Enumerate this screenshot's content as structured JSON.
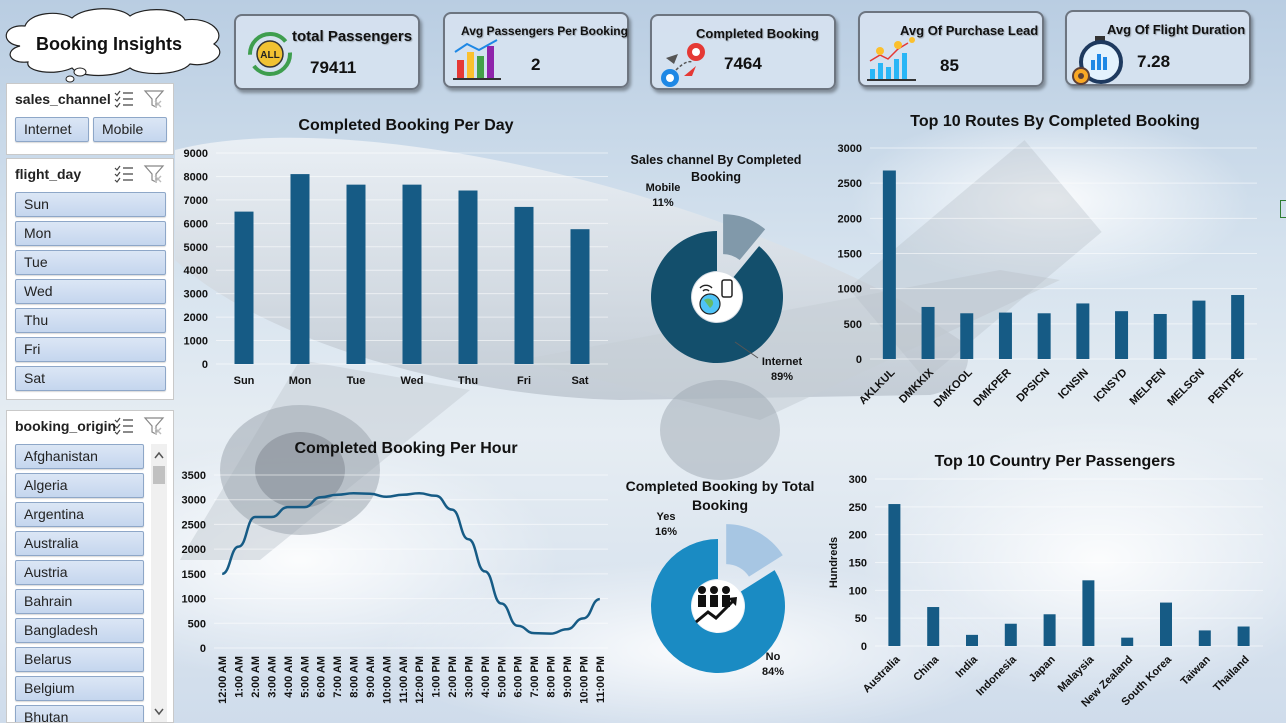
{
  "title": "Booking Insights",
  "kpis": [
    {
      "label": "total Passengers",
      "value": "79411",
      "icon": "all-passengers-icon"
    },
    {
      "label": "Avg Passengers Per Booking",
      "value": "2",
      "icon": "bar-chart-icon"
    },
    {
      "label": "Completed Booking",
      "value": "7464",
      "icon": "route-pin-icon"
    },
    {
      "label": "Avg Of Purchase Lead",
      "value": "85",
      "icon": "money-trend-icon"
    },
    {
      "label": "Avg Of Flight Duration",
      "value": "7.28",
      "icon": "stopwatch-icon"
    }
  ],
  "slicers": {
    "sales_channel": {
      "header": "sales_channel",
      "items": [
        "Internet",
        "Mobile"
      ]
    },
    "flight_day": {
      "header": "flight_day",
      "items": [
        "Sun",
        "Mon",
        "Tue",
        "Wed",
        "Thu",
        "Fri",
        "Sat"
      ]
    },
    "booking_origin": {
      "header": "booking_origin",
      "items": [
        "Afghanistan",
        "Algeria",
        "Argentina",
        "Australia",
        "Austria",
        "Bahrain",
        "Bangladesh",
        "Belarus",
        "Belgium",
        "Bhutan"
      ]
    }
  },
  "chart_data": [
    {
      "type": "bar",
      "title": "Completed Booking Per Day",
      "categories": [
        "Sun",
        "Mon",
        "Tue",
        "Wed",
        "Thu",
        "Fri",
        "Sat"
      ],
      "values": [
        6500,
        8100,
        7650,
        7650,
        7400,
        6700,
        5750
      ],
      "ylim": [
        0,
        9000
      ],
      "yticks": [
        "9000",
        "8000",
        "7000",
        "6000",
        "5000",
        "4000",
        "3000",
        "2000",
        "1000",
        "0"
      ],
      "color": "#165b85"
    },
    {
      "type": "pie",
      "title": "Sales channel By Completed Booking",
      "slices": [
        {
          "name": "Mobile",
          "value": 11,
          "label": "11%",
          "color": "#8199aa"
        },
        {
          "name": "Internet",
          "value": 89,
          "label": "89%",
          "color": "#134f6c"
        }
      ]
    },
    {
      "type": "bar",
      "title": "Top 10 Routes By Completed Booking",
      "categories": [
        "AKLKUL",
        "DMKKIX",
        "DMKOOL",
        "DMKPER",
        "DPSICN",
        "ICNSIN",
        "ICNSYD",
        "MELPEN",
        "MELSGN",
        "PENTPE"
      ],
      "values": [
        2680,
        740,
        650,
        660,
        650,
        790,
        680,
        640,
        830,
        910
      ],
      "ylim": [
        0,
        3000
      ],
      "yticks": [
        "3000",
        "2500",
        "2000",
        "1500",
        "1000",
        "500",
        "0"
      ],
      "color": "#165b85"
    },
    {
      "type": "line",
      "title": "Completed Booking Per Hour",
      "categories": [
        "12:00 AM",
        "1:00 AM",
        "2:00 AM",
        "3:00 AM",
        "4:00 AM",
        "5:00 AM",
        "6:00 AM",
        "7:00 AM",
        "8:00 AM",
        "9:00 AM",
        "10:00 AM",
        "11:00 AM",
        "12:00 PM",
        "1:00 PM",
        "2:00 PM",
        "3:00 PM",
        "4:00 PM",
        "5:00 PM",
        "6:00 PM",
        "7:00 PM",
        "8:00 PM",
        "9:00 PM",
        "10:00 PM",
        "11:00 PM"
      ],
      "values": [
        1500,
        2050,
        2650,
        2650,
        2850,
        2850,
        3050,
        3100,
        3130,
        3120,
        3060,
        3100,
        3130,
        3080,
        2800,
        2200,
        1550,
        900,
        450,
        300,
        290,
        380,
        600,
        990
      ],
      "ylim": [
        0,
        3500
      ],
      "yticks": [
        "3500",
        "3000",
        "2500",
        "2000",
        "1500",
        "1000",
        "500",
        "0"
      ],
      "color": "#165b85"
    },
    {
      "type": "pie",
      "title": "Completed Booking by Total Booking",
      "slices": [
        {
          "name": "Yes",
          "value": 16,
          "label": "16%",
          "color": "#a7c6e3"
        },
        {
          "name": "No",
          "value": 84,
          "label": "84%",
          "color": "#1a8bc3"
        }
      ]
    },
    {
      "type": "bar",
      "title": "Top 10 Country Per Passengers",
      "ylabel": "Hundreds",
      "categories": [
        "Australia",
        "China",
        "India",
        "Indonesia",
        "Japan",
        "Malaysia",
        "New Zealand",
        "South Korea",
        "Taiwan",
        "Thailand"
      ],
      "values": [
        255,
        70,
        20,
        40,
        57,
        118,
        15,
        78,
        28,
        35
      ],
      "ylim": [
        0,
        300
      ],
      "yticks": [
        "300",
        "250",
        "200",
        "150",
        "100",
        "50",
        "0"
      ],
      "color": "#165b85"
    }
  ]
}
